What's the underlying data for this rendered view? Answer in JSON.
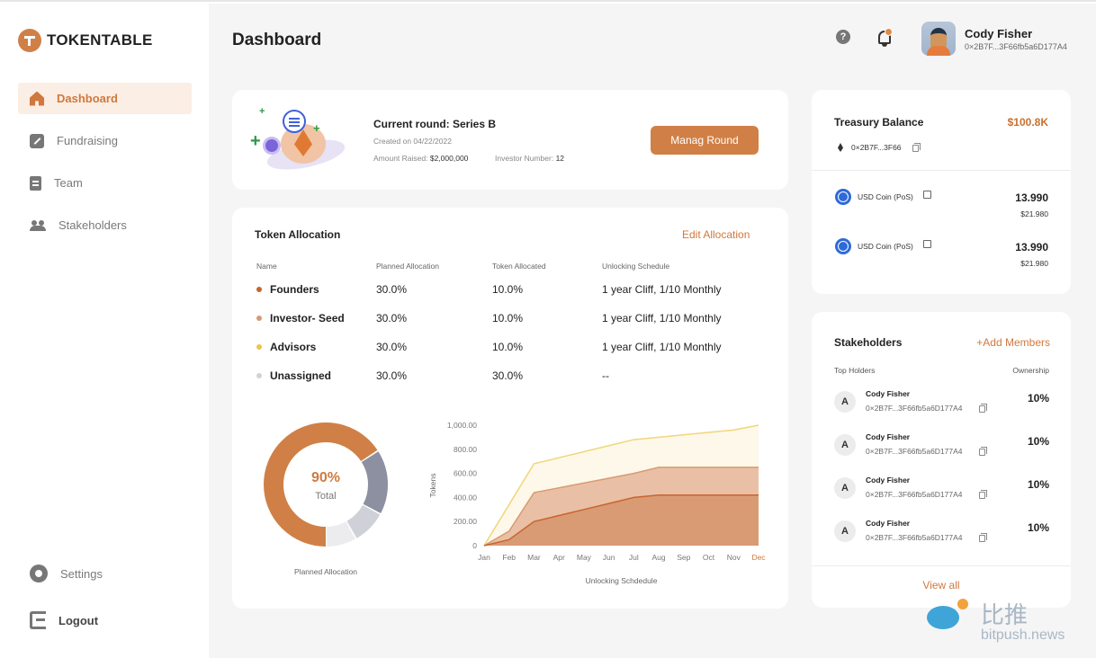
{
  "brand": {
    "name": "TOKENTABLE",
    "accent": "#d08046"
  },
  "sidebar": {
    "items": [
      {
        "label": "Dashboard",
        "icon": "home-icon",
        "active": true
      },
      {
        "label": "Fundraising",
        "icon": "edit-icon"
      },
      {
        "label": "Team",
        "icon": "document-icon"
      },
      {
        "label": "Stakeholders",
        "icon": "people-icon"
      }
    ],
    "settings_label": "Settings",
    "logout_label": "Logout"
  },
  "header": {
    "title": "Dashboard",
    "help_glyph": "?",
    "user": {
      "name": "Cody Fisher",
      "address": "0×2B7F...3F66fb5a6D177A4"
    }
  },
  "round": {
    "title": "Current round: Series B",
    "created": "Created on 04/22/2022",
    "raised_label": "Amount Raised:",
    "raised_value": "$2,000,000",
    "investors_label": "Investor Number:",
    "investors_value": "12",
    "button_label": "Manag Round"
  },
  "allocation": {
    "title": "Token Allocation",
    "edit_label": "Edit Allocation",
    "columns": [
      "Name",
      "Planned Allocation",
      "Token Allocated",
      "Unlocking Schedule"
    ],
    "rows": [
      {
        "name": "Founders",
        "color": "#c9642f",
        "planned": "30.0%",
        "allocated": "10.0%",
        "schedule": "1 year Cliff, 1/10 Monthly"
      },
      {
        "name": "Investor- Seed",
        "color": "#d79a78",
        "planned": "30.0%",
        "allocated": "10.0%",
        "schedule": "1 year Cliff, 1/10 Monthly"
      },
      {
        "name": "Advisors",
        "color": "#ecc54a",
        "planned": "30.0%",
        "allocated": "10.0%",
        "schedule": "1 year Cliff, 1/10 Monthly"
      },
      {
        "name": "Unassigned",
        "color": "#d3d3d3",
        "planned": "30.0%",
        "allocated": "30.0%",
        "schedule": "--"
      }
    ],
    "donut": {
      "percent": "90%",
      "label": "Total",
      "caption": "Planned Allocation",
      "segments": [
        {
          "value": 66,
          "color": "#d08046"
        },
        {
          "value": 17,
          "color": "#8c90a1"
        },
        {
          "value": 9,
          "color": "#cfd1d8"
        },
        {
          "value": 8,
          "color": "#ececef"
        }
      ]
    }
  },
  "chart_data": {
    "type": "area",
    "categories": [
      "Jan",
      "Feb",
      "Mar",
      "Apr",
      "May",
      "Jun",
      "Jul",
      "Aug",
      "Sep",
      "Oct",
      "Nov",
      "Dec"
    ],
    "highlight_category": "Dec",
    "series": [
      {
        "values": [
          0,
          340,
          680,
          730,
          780,
          830,
          880,
          900,
          920,
          940,
          960,
          1000
        ],
        "color": "#f1d678",
        "fill": "#fdf8ea"
      },
      {
        "values": [
          0,
          120,
          440,
          480,
          520,
          560,
          600,
          650,
          650,
          650,
          650,
          650
        ],
        "color": "#d89a72",
        "fill": "#e9c0a5"
      },
      {
        "values": [
          0,
          50,
          200,
          250,
          300,
          350,
          400,
          420,
          420,
          420,
          420,
          420
        ],
        "color": "#c9642f",
        "fill": "#d99b74"
      }
    ],
    "yticks": [
      "0",
      "200.00",
      "400.00",
      "600.00",
      "800.00",
      "1,000.00"
    ],
    "ylim": [
      0,
      1000
    ],
    "xlabel": "Unlocking Schdedule",
    "ylabel": "Tokens"
  },
  "treasury": {
    "title": "Treasury Balance",
    "value": "$100.8K",
    "address": "0×2B7F...3F66",
    "coins": [
      {
        "name": "USD Coin (PoS)",
        "amount": "13.990",
        "usd": "$21.980"
      },
      {
        "name": "USD Coin (PoS)",
        "amount": "13.990",
        "usd": "$21.980"
      }
    ]
  },
  "stakeholders": {
    "title": "Stakeholders",
    "add_label": "+Add Members",
    "col_holders": "Top Holders",
    "col_ownership": "Ownership",
    "holders": [
      {
        "initial": "A",
        "name": "Cody Fisher",
        "address": "0×2B7F...3F66fb5a6D177A4",
        "ownership": "10%"
      },
      {
        "initial": "A",
        "name": "Cody Fisher",
        "address": "0×2B7F...3F66fb5a6D177A4",
        "ownership": "10%"
      },
      {
        "initial": "A",
        "name": "Cody Fisher",
        "address": "0×2B7F...3F66fb5a6D177A4",
        "ownership": "10%"
      },
      {
        "initial": "A",
        "name": "Cody Fisher",
        "address": "0×2B7F...3F66fb5a6D177A4",
        "ownership": "10%"
      }
    ],
    "view_all_label": "View all"
  },
  "watermark": {
    "cn": "比推",
    "en": "bitpush.news"
  }
}
